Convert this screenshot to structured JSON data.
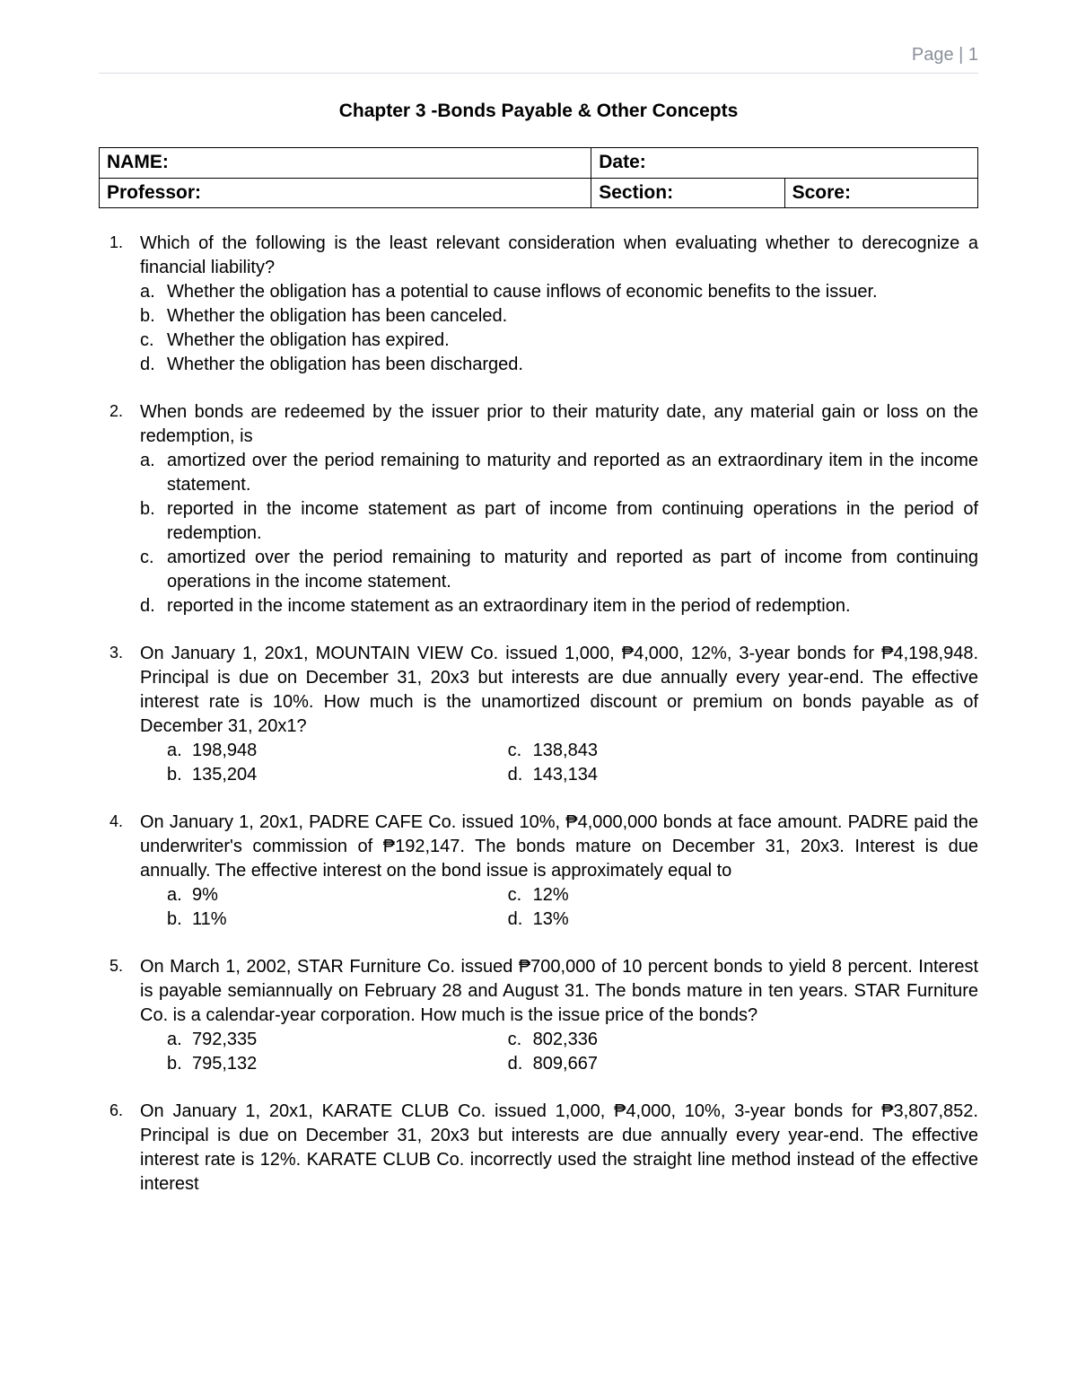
{
  "page_header": "Page | 1",
  "chapter_title": "Chapter 3 -Bonds Payable & Other Concepts",
  "info_table": {
    "name_label": "NAME:",
    "date_label": "Date:",
    "professor_label": "Professor:",
    "section_label": "Section:",
    "score_label": "Score:"
  },
  "questions": [
    {
      "num": "1.",
      "stem": "Which of the following is the least relevant consideration when evaluating whether to derecognize a financial liability?",
      "options_layout": "list",
      "options": [
        {
          "l": "a.",
          "t": "Whether the obligation has a potential to cause inflows of economic benefits to the issuer."
        },
        {
          "l": "b.",
          "t": "Whether the obligation has been canceled."
        },
        {
          "l": "c.",
          "t": "Whether the obligation has expired."
        },
        {
          "l": "d.",
          "t": "Whether the obligation has been discharged."
        }
      ]
    },
    {
      "num": "2.",
      "stem": "When bonds are redeemed by the issuer prior to their maturity date, any material gain or loss on the redemption, is",
      "options_layout": "list",
      "options": [
        {
          "l": "a.",
          "t": "amortized over the period remaining to maturity and reported as an extraordinary item in the income statement."
        },
        {
          "l": "b.",
          "t": "reported in the income statement as part of income from continuing operations in the period of redemption."
        },
        {
          "l": "c.",
          "t": "amortized over the period remaining to maturity and reported as part of income from continuing operations in the income statement."
        },
        {
          "l": "d.",
          "t": "reported in the income statement as an extraordinary item in the period of redemption."
        }
      ]
    },
    {
      "num": "3.",
      "stem": "On January 1, 20x1, MOUNTAIN VIEW Co. issued 1,000, ₱4,000, 12%, 3-year bonds for ₱4,198,948. Principal is due on December 31, 20x3 but interests are due annually every year-end. The effective interest rate is 10%. How much is the unamortized discount or premium on bonds payable as of December 31, 20x1?",
      "options_layout": "two-col",
      "colA": [
        {
          "l": "a.",
          "t": "198,948"
        },
        {
          "l": "b.",
          "t": "135,204"
        }
      ],
      "colB": [
        {
          "l": "c.",
          "t": "138,843"
        },
        {
          "l": "d.",
          "t": "143,134"
        }
      ]
    },
    {
      "num": "4.",
      "stem": "On January 1, 20x1, PADRE CAFE Co. issued 10%, ₱4,000,000 bonds at face amount. PADRE paid the underwriter's commission of ₱192,147. The bonds mature on December 31, 20x3. Interest is due annually. The effective interest on the bond issue is approximately equal to",
      "options_layout": "two-col",
      "colA": [
        {
          "l": "a.",
          "t": " 9%"
        },
        {
          "l": "b.",
          "t": " 11%"
        }
      ],
      "colB": [
        {
          "l": "c.",
          "t": "12%"
        },
        {
          "l": "d.",
          "t": "13%"
        }
      ]
    },
    {
      "num": "5.",
      "stem": "On March 1, 2002, STAR Furniture Co. issued ₱700,000 of 10 percent bonds to yield 8 percent. Interest is payable semiannually on February 28 and August 31. The bonds mature in ten years. STAR Furniture Co. is a calendar-year corporation. How much is the issue price of the bonds?",
      "options_layout": "two-col",
      "colA": [
        {
          "l": "a.",
          "t": " 792,335"
        },
        {
          "l": "b.",
          "t": " 795,132"
        }
      ],
      "colB": [
        {
          "l": "c.",
          "t": "802,336"
        },
        {
          "l": "d.",
          "t": "809,667"
        }
      ]
    },
    {
      "num": "6.",
      "stem": "On January 1, 20x1, KARATE CLUB Co. issued 1,000, ₱4,000, 10%, 3-year bonds for ₱3,807,852. Principal is due on December 31, 20x3 but interests are due annually every year-end. The effective interest rate is 12%. KARATE CLUB Co. incorrectly used the straight line method instead of the effective interest",
      "options_layout": "none"
    }
  ]
}
